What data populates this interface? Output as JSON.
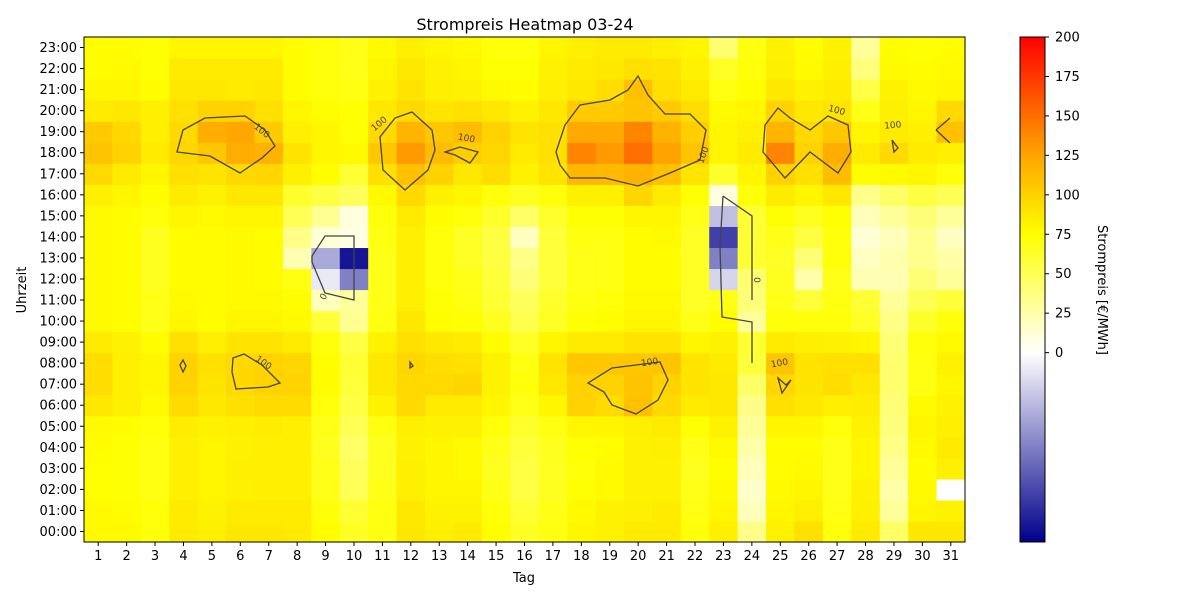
{
  "chart_data": {
    "type": "heatmap",
    "title": "Strompreis Heatmap 03-24",
    "xlabel": "Tag",
    "ylabel": "Uhrzeit",
    "colorbar_label": "Strompreis [€/MWh]",
    "colorbar_ticks": [
      0,
      25,
      50,
      75,
      100,
      125,
      150,
      175,
      200
    ],
    "colorbar_range": [
      -120,
      200
    ],
    "colormap": [
      "#00008b",
      "#ffffff",
      "#ffff00",
      "#ffa500",
      "#ff0000"
    ],
    "contour_level": 100,
    "contour_labels": [
      "100",
      "100",
      "100",
      "100",
      "100",
      "100",
      "100",
      "100",
      "100",
      "100",
      "100",
      "0",
      "0"
    ],
    "x": [
      "1",
      "2",
      "3",
      "4",
      "5",
      "6",
      "7",
      "8",
      "9",
      "10",
      "11",
      "12",
      "13",
      "14",
      "15",
      "16",
      "17",
      "18",
      "19",
      "20",
      "21",
      "22",
      "23",
      "24",
      "25",
      "26",
      "27",
      "28",
      "29",
      "30",
      "31"
    ],
    "y": [
      "00:00",
      "01:00",
      "02:00",
      "03:00",
      "04:00",
      "05:00",
      "06:00",
      "07:00",
      "08:00",
      "09:00",
      "10:00",
      "11:00",
      "12:00",
      "13:00",
      "14:00",
      "15:00",
      "16:00",
      "17:00",
      "18:00",
      "19:00",
      "20:00",
      "21:00",
      "22:00",
      "23:00"
    ],
    "values": [
      [
        78,
        78,
        72,
        86,
        84,
        88,
        88,
        86,
        76,
        64,
        70,
        88,
        84,
        86,
        76,
        64,
        70,
        80,
        82,
        86,
        86,
        72,
        84,
        35,
        82,
        92,
        72,
        86,
        45,
        88,
        88
      ],
      [
        78,
        76,
        72,
        86,
        82,
        86,
        86,
        86,
        72,
        60,
        70,
        88,
        82,
        82,
        72,
        60,
        68,
        78,
        82,
        84,
        86,
        70,
        80,
        20,
        80,
        84,
        70,
        84,
        30,
        80,
        82
      ],
      [
        75,
        74,
        70,
        84,
        80,
        82,
        84,
        84,
        68,
        50,
        68,
        84,
        80,
        80,
        68,
        55,
        66,
        74,
        78,
        82,
        82,
        68,
        78,
        15,
        78,
        80,
        68,
        82,
        25,
        78,
        0
      ],
      [
        75,
        74,
        70,
        84,
        80,
        84,
        84,
        84,
        68,
        48,
        66,
        84,
        80,
        78,
        66,
        55,
        65,
        72,
        78,
        82,
        82,
        66,
        76,
        20,
        76,
        78,
        68,
        80,
        30,
        76,
        84
      ],
      [
        76,
        74,
        70,
        84,
        80,
        82,
        84,
        84,
        66,
        45,
        66,
        82,
        80,
        78,
        68,
        58,
        66,
        74,
        76,
        82,
        84,
        68,
        78,
        25,
        76,
        76,
        68,
        80,
        35,
        78,
        86
      ],
      [
        78,
        76,
        72,
        85,
        82,
        84,
        85,
        84,
        68,
        50,
        70,
        84,
        82,
        82,
        72,
        62,
        70,
        80,
        80,
        84,
        86,
        74,
        82,
        30,
        80,
        80,
        72,
        82,
        38,
        80,
        84
      ],
      [
        88,
        84,
        78,
        95,
        88,
        92,
        95,
        95,
        72,
        55,
        82,
        96,
        86,
        86,
        80,
        68,
        80,
        100,
        95,
        110,
        96,
        86,
        88,
        35,
        92,
        88,
        84,
        85,
        40,
        78,
        82
      ],
      [
        94,
        84,
        80,
        100,
        90,
        96,
        100,
        100,
        76,
        58,
        88,
        96,
        96,
        98,
        82,
        72,
        88,
        100,
        100,
        108,
        100,
        90,
        88,
        45,
        98,
        90,
        94,
        88,
        42,
        70,
        80
      ],
      [
        94,
        84,
        80,
        100,
        92,
        96,
        100,
        98,
        76,
        60,
        88,
        98,
        94,
        92,
        82,
        70,
        90,
        106,
        106,
        106,
        108,
        90,
        86,
        58,
        108,
        90,
        92,
        92,
        42,
        70,
        82
      ],
      [
        86,
        82,
        76,
        92,
        84,
        90,
        90,
        86,
        72,
        55,
        82,
        92,
        88,
        86,
        76,
        64,
        80,
        86,
        86,
        90,
        90,
        80,
        82,
        60,
        86,
        84,
        82,
        80,
        40,
        72,
        78
      ],
      [
        78,
        76,
        68,
        80,
        76,
        80,
        80,
        78,
        58,
        32,
        70,
        88,
        76,
        74,
        66,
        52,
        64,
        74,
        76,
        80,
        80,
        68,
        76,
        30,
        72,
        72,
        72,
        64,
        35,
        62,
        72
      ],
      [
        78,
        76,
        68,
        78,
        76,
        78,
        78,
        76,
        20,
        30,
        68,
        84,
        74,
        70,
        60,
        48,
        62,
        70,
        72,
        78,
        78,
        64,
        68,
        40,
        68,
        58,
        70,
        60,
        30,
        50,
        58
      ],
      [
        78,
        76,
        66,
        76,
        76,
        78,
        76,
        70,
        -10,
        -60,
        68,
        84,
        72,
        68,
        58,
        40,
        58,
        68,
        70,
        76,
        76,
        64,
        -20,
        42,
        66,
        25,
        68,
        22,
        22,
        40,
        30
      ],
      [
        78,
        76,
        66,
        76,
        76,
        78,
        76,
        22,
        -40,
        -110,
        68,
        84,
        72,
        64,
        56,
        35,
        58,
        68,
        70,
        76,
        76,
        64,
        -60,
        60,
        64,
        40,
        72,
        18,
        24,
        34,
        26
      ],
      [
        78,
        76,
        66,
        76,
        76,
        78,
        76,
        35,
        12,
        8,
        70,
        84,
        72,
        64,
        56,
        18,
        58,
        70,
        70,
        76,
        78,
        64,
        -90,
        60,
        68,
        56,
        72,
        12,
        20,
        34,
        18
      ],
      [
        78,
        76,
        72,
        80,
        78,
        80,
        80,
        50,
        32,
        10,
        72,
        86,
        76,
        72,
        62,
        45,
        62,
        74,
        74,
        80,
        80,
        68,
        -30,
        60,
        74,
        66,
        74,
        20,
        30,
        40,
        30
      ],
      [
        84,
        80,
        76,
        86,
        82,
        88,
        88,
        62,
        55,
        48,
        78,
        96,
        84,
        80,
        72,
        66,
        72,
        84,
        84,
        98,
        86,
        74,
        10,
        72,
        86,
        80,
        88,
        34,
        45,
        56,
        50
      ],
      [
        96,
        86,
        80,
        92,
        90,
        96,
        98,
        84,
        76,
        60,
        92,
        110,
        100,
        88,
        94,
        82,
        90,
        115,
        114,
        118,
        110,
        90,
        62,
        80,
        100,
        92,
        112,
        76,
        78,
        80,
        72
      ],
      [
        108,
        100,
        86,
        98,
        106,
        120,
        118,
        90,
        80,
        78,
        106,
        130,
        112,
        102,
        98,
        86,
        92,
        140,
        130,
        150,
        126,
        108,
        80,
        86,
        140,
        100,
        120,
        86,
        96,
        86,
        84
      ],
      [
        104,
        96,
        84,
        96,
        120,
        124,
        104,
        84,
        80,
        74,
        96,
        116,
        106,
        112,
        100,
        90,
        92,
        122,
        122,
        140,
        118,
        102,
        80,
        84,
        116,
        96,
        106,
        80,
        86,
        84,
        110
      ],
      [
        86,
        88,
        84,
        92,
        100,
        100,
        92,
        80,
        76,
        74,
        88,
        96,
        90,
        92,
        88,
        82,
        88,
        104,
        104,
        108,
        104,
        94,
        78,
        80,
        100,
        88,
        90,
        68,
        84,
        80,
        96
      ],
      [
        80,
        80,
        76,
        88,
        88,
        86,
        88,
        76,
        72,
        70,
        82,
        90,
        84,
        82,
        78,
        76,
        84,
        88,
        94,
        110,
        92,
        86,
        70,
        76,
        88,
        82,
        86,
        54,
        82,
        78,
        80
      ],
      [
        76,
        78,
        74,
        86,
        86,
        86,
        86,
        76,
        72,
        68,
        80,
        88,
        82,
        80,
        74,
        74,
        82,
        86,
        88,
        92,
        90,
        82,
        64,
        72,
        84,
        78,
        84,
        38,
        78,
        76,
        78
      ],
      [
        76,
        76,
        74,
        80,
        80,
        80,
        80,
        76,
        72,
        68,
        78,
        84,
        80,
        78,
        72,
        72,
        80,
        84,
        86,
        86,
        84,
        80,
        42,
        70,
        82,
        76,
        82,
        30,
        76,
        74,
        76
      ]
    ],
    "grid": false
  }
}
